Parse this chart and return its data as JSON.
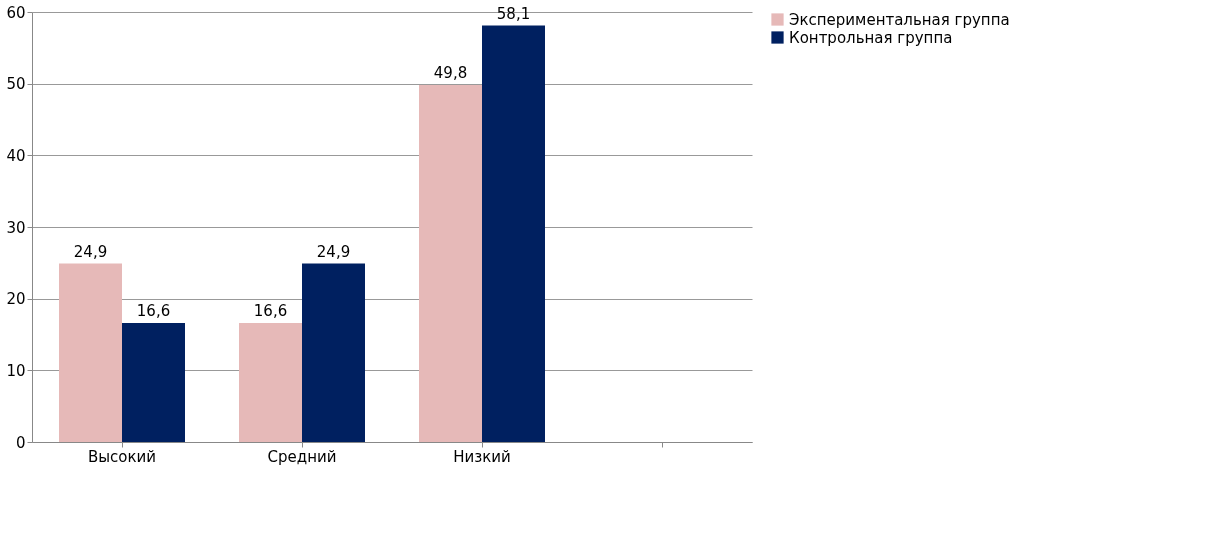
{
  "chart_data": {
    "type": "bar",
    "categories": [
      "Высокий",
      "Средний",
      "Низкий",
      null
    ],
    "series": [
      {
        "name": "Экспериментальная группа",
        "color": "#e6b9b8",
        "values": [
          24.9,
          16.6,
          49.8,
          null
        ],
        "value_labels": [
          "24,9",
          "16,6",
          "49,8",
          null
        ]
      },
      {
        "name": "Контрольная группа",
        "color": "#002060",
        "values": [
          16.6,
          24.9,
          58.1,
          null
        ],
        "value_labels": [
          "16,6",
          "24,9",
          "58,1",
          null
        ]
      }
    ],
    "ylim": [
      0,
      60
    ],
    "yticks": [
      0,
      10,
      20,
      30,
      40,
      50,
      60
    ],
    "grid": "y",
    "legend": "right"
  }
}
